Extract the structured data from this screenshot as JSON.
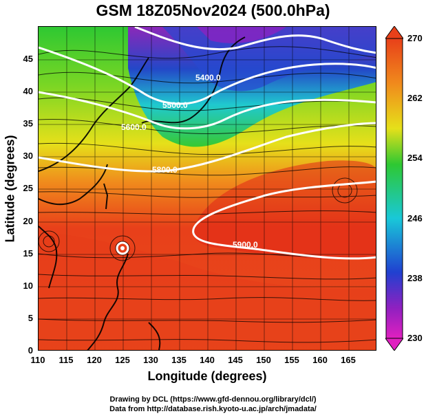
{
  "title": "GSM 18Z05Nov2024 (500.0hPa)",
  "map": {
    "xlabel": "Longitude (degrees)",
    "ylabel": "Latitude  (degrees)",
    "lon_range": [
      110,
      170
    ],
    "lat_range": [
      0,
      50
    ],
    "x_ticks": [
      "110",
      "115",
      "120",
      "125",
      "130",
      "135",
      "140",
      "145",
      "150",
      "155",
      "160",
      "165"
    ],
    "y_ticks": [
      "0",
      "5",
      "10",
      "15",
      "20",
      "25",
      "30",
      "35",
      "40",
      "45"
    ],
    "contours": [
      "5400.0",
      "5500.0",
      "5600.0",
      "5800.0",
      "5900.0"
    ],
    "field": "temperature",
    "colors": {
      "warm": "#e8401a",
      "orange": "#f08a1c",
      "yellow": "#e6e01a",
      "green": "#2ec832",
      "cyan": "#19c8d8",
      "blue": "#2040d0",
      "purple": "#9020c0"
    }
  },
  "colorbar": {
    "ticks": [
      "270",
      "262",
      "254",
      "246",
      "238",
      "230"
    ]
  },
  "credits": {
    "line1": "Drawing by DCL (https://www.gfd-dennou.org/library/dcl/)",
    "line2": "Data from http://database.rish.kyoto-u.ac.jp/arch/jmadata/"
  }
}
